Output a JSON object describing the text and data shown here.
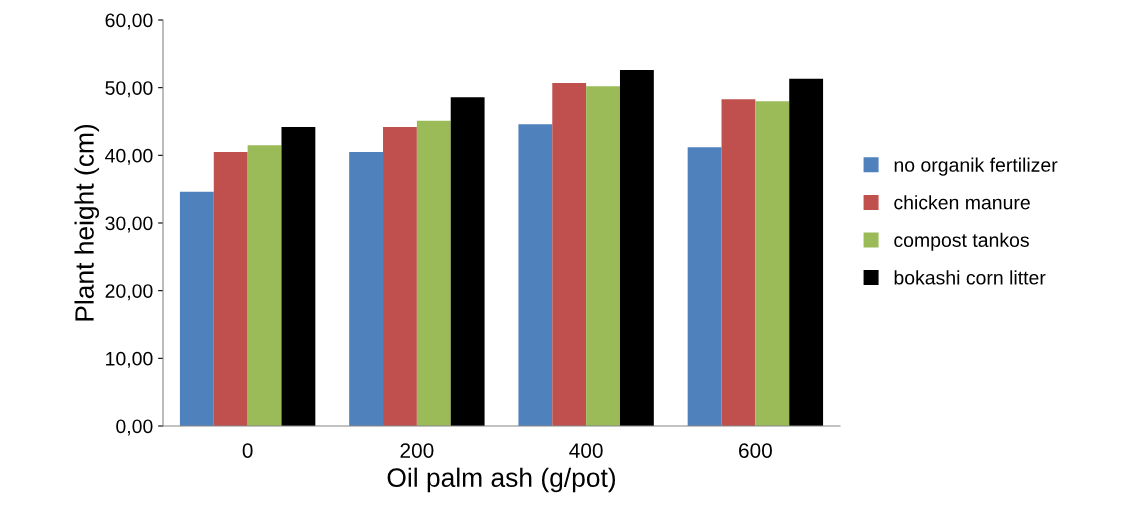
{
  "chart_data": {
    "type": "bar",
    "xlabel": "Oil palm ash (g/pot)",
    "ylabel": "Plant height (cm)",
    "categories": [
      "0",
      "200",
      "400",
      "600"
    ],
    "series": [
      {
        "name": "no organik fertilizer",
        "color": "#4f81bd",
        "values": [
          34.6,
          40.5,
          44.6,
          41.2
        ]
      },
      {
        "name": "chicken manure",
        "color": "#c0504d",
        "values": [
          40.5,
          44.2,
          50.7,
          48.3
        ]
      },
      {
        "name": "compost tankos",
        "color": "#9bbb59",
        "values": [
          41.5,
          45.1,
          50.2,
          48.0
        ]
      },
      {
        "name": "bokashi corn litter",
        "color": "#000000",
        "values": [
          44.2,
          48.6,
          52.6,
          51.3
        ]
      }
    ],
    "ylim": [
      0,
      60
    ],
    "yticks": [
      {
        "value": 0,
        "label": "0,00"
      },
      {
        "value": 10,
        "label": "10,00"
      },
      {
        "value": 20,
        "label": "20,00"
      },
      {
        "value": 30,
        "label": "30,00"
      },
      {
        "value": 40,
        "label": "40,00"
      },
      {
        "value": 50,
        "label": "50,00"
      },
      {
        "value": 60,
        "label": "60,00"
      }
    ],
    "grid": false,
    "legend": "right"
  }
}
